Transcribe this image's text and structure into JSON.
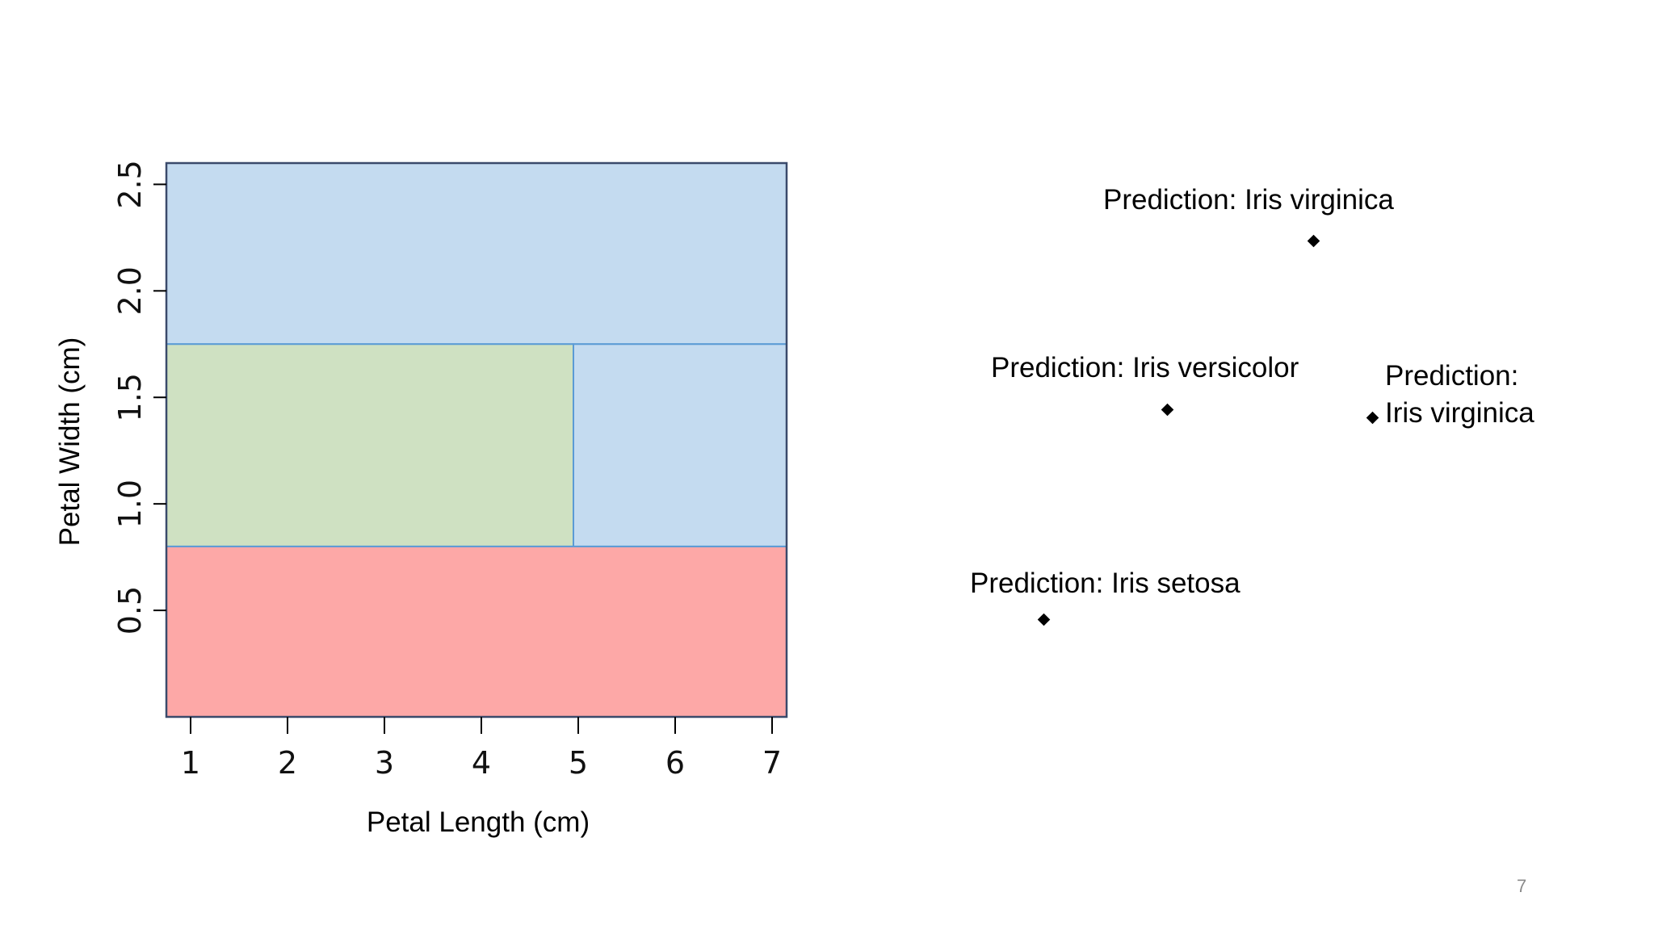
{
  "colors": {
    "virginica": "#c4dbf0",
    "versicolor": "#cfe1c2",
    "setosa": "#fda8a7",
    "split_line": "#5b9bd5",
    "frame": "#3a4a6b"
  },
  "chart_data": {
    "type": "decision-regions",
    "xlabel": "Petal Length (cm)",
    "ylabel": "Petal Width (cm)",
    "xlim": [
      0.75,
      7.15
    ],
    "ylim": [
      0.0,
      2.6
    ],
    "x_ticks": [
      "1",
      "2",
      "3",
      "4",
      "5",
      "6",
      "7"
    ],
    "y_ticks": [
      "0.5",
      "1.0",
      "1.5",
      "2.0",
      "2.5"
    ],
    "regions": [
      {
        "class": "virginica",
        "x": [
          0.75,
          7.15
        ],
        "y": [
          1.75,
          2.6
        ]
      },
      {
        "class": "versicolor",
        "x": [
          0.75,
          4.95
        ],
        "y": [
          0.8,
          1.75
        ]
      },
      {
        "class": "virginica",
        "x": [
          4.95,
          7.15
        ],
        "y": [
          0.8,
          1.75
        ]
      },
      {
        "class": "setosa",
        "x": [
          0.75,
          7.15
        ],
        "y": [
          0.0,
          0.8
        ]
      }
    ],
    "splits": {
      "petal_width": [
        0.8,
        1.75
      ],
      "petal_length": 4.95
    }
  },
  "predictions": [
    {
      "text": "Prediction: Iris virginica"
    },
    {
      "text": "Prediction: Iris versicolor"
    },
    {
      "line1": "Prediction:",
      "line2": "Iris virginica"
    },
    {
      "text": "Prediction: Iris setosa"
    }
  ],
  "page_number": "7"
}
